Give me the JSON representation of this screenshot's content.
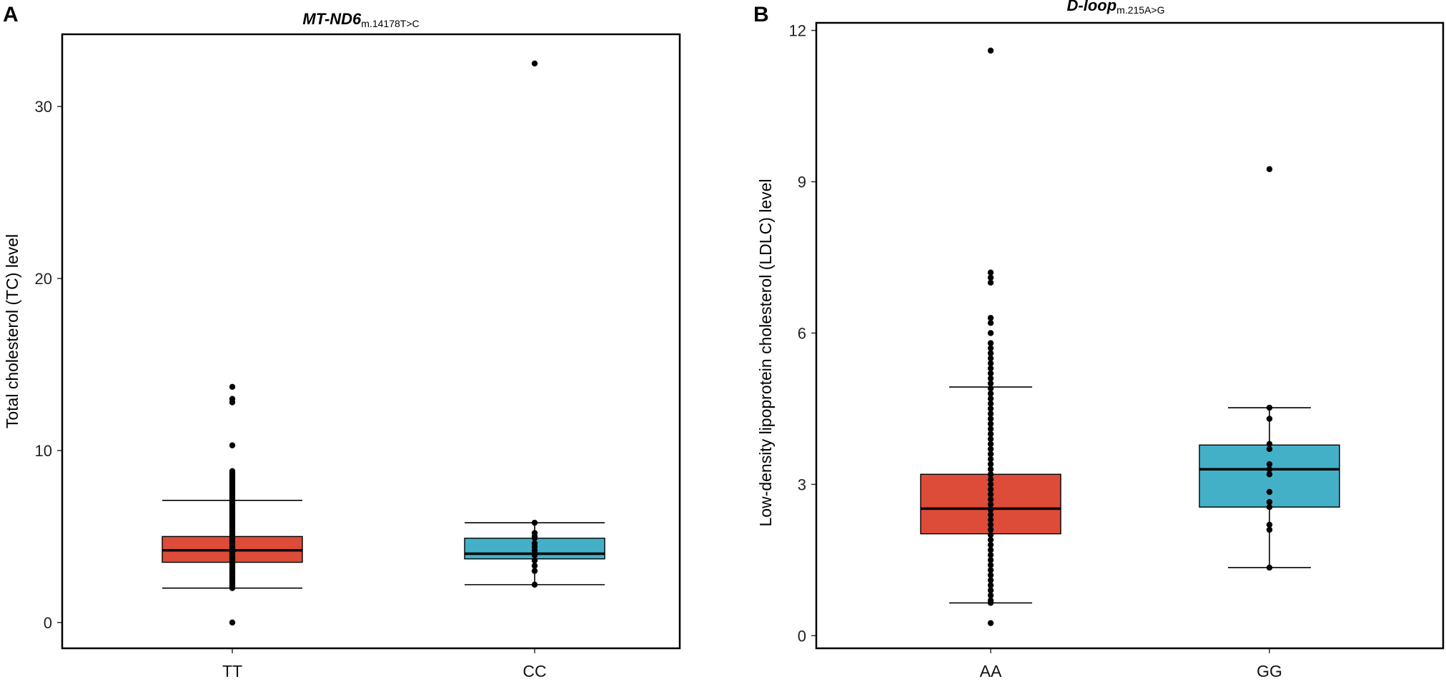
{
  "chart_data": [
    {
      "type": "box",
      "panel_label": "A",
      "title": "MT-ND6",
      "title_subscript": "m.14178T>C",
      "xlabel": "",
      "ylabel": "Total cholesterol (TC) level",
      "ylim": [
        -1.5,
        34.2
      ],
      "yticks": [
        0,
        10,
        20,
        30
      ],
      "grid": false,
      "categories": [
        "TT",
        "CC"
      ],
      "series": [
        {
          "name": "TT",
          "color": "#dd4b39",
          "q1": 3.5,
          "median": 4.2,
          "q3": 5.0,
          "whisker_low": 2.0,
          "whisker_high": 7.1,
          "points": [
            0.0,
            2.0,
            2.1,
            2.2,
            2.3,
            2.4,
            2.5,
            2.6,
            2.7,
            2.8,
            2.9,
            3.0,
            3.1,
            3.2,
            3.3,
            3.4,
            3.5,
            3.6,
            3.7,
            3.8,
            3.9,
            4.0,
            4.1,
            4.2,
            4.3,
            4.4,
            4.5,
            4.6,
            4.7,
            4.8,
            4.9,
            5.0,
            5.1,
            5.2,
            5.3,
            5.4,
            5.5,
            5.6,
            5.7,
            5.8,
            5.9,
            6.0,
            6.1,
            6.2,
            6.3,
            6.4,
            6.5,
            6.6,
            6.7,
            6.8,
            6.9,
            7.0,
            7.1,
            7.2,
            7.3,
            7.4,
            7.5,
            7.6,
            7.7,
            7.8,
            7.9,
            8.0,
            8.1,
            8.2,
            8.3,
            8.4,
            8.5,
            8.6,
            8.7,
            8.8,
            10.3,
            12.8,
            13.0,
            13.7
          ]
        },
        {
          "name": "CC",
          "color": "#43b0c8",
          "q1": 3.7,
          "median": 4.0,
          "q3": 4.9,
          "whisker_low": 2.2,
          "whisker_high": 5.8,
          "points": [
            2.2,
            3.0,
            3.3,
            3.6,
            3.9,
            4.0,
            4.2,
            4.4,
            4.6,
            4.9,
            5.0,
            5.2,
            5.8,
            32.5
          ]
        }
      ]
    },
    {
      "type": "box",
      "panel_label": "B",
      "title": "D-loop",
      "title_subscript": "m.215A>G",
      "xlabel": "",
      "ylabel": "Low-density lipoprotein cholesterol (LDLC) level",
      "ylim": [
        -0.25,
        12.15
      ],
      "yticks": [
        0,
        3,
        6,
        9,
        12
      ],
      "grid": false,
      "categories": [
        "AA",
        "GG"
      ],
      "series": [
        {
          "name": "AA",
          "color": "#dd4b39",
          "q1": 2.02,
          "median": 2.52,
          "q3": 3.2,
          "whisker_low": 0.65,
          "whisker_high": 4.93,
          "points": [
            0.25,
            0.65,
            0.7,
            0.8,
            0.9,
            1.0,
            1.1,
            1.2,
            1.3,
            1.4,
            1.5,
            1.6,
            1.7,
            1.8,
            1.9,
            2.0,
            2.1,
            2.2,
            2.3,
            2.4,
            2.5,
            2.6,
            2.7,
            2.8,
            2.9,
            3.0,
            3.1,
            3.2,
            3.3,
            3.4,
            3.5,
            3.6,
            3.7,
            3.8,
            3.9,
            4.0,
            4.1,
            4.2,
            4.3,
            4.4,
            4.5,
            4.6,
            4.7,
            4.8,
            4.9,
            5.0,
            5.1,
            5.2,
            5.3,
            5.4,
            5.5,
            5.6,
            5.7,
            5.8,
            6.0,
            6.2,
            6.3,
            7.0,
            7.1,
            7.2,
            11.6
          ]
        },
        {
          "name": "GG",
          "color": "#43b0c8",
          "q1": 2.55,
          "median": 3.3,
          "q3": 3.78,
          "whisker_low": 1.35,
          "whisker_high": 4.52,
          "points": [
            1.35,
            2.1,
            2.2,
            2.55,
            2.65,
            2.85,
            3.2,
            3.3,
            3.4,
            3.7,
            3.8,
            4.3,
            4.52,
            9.25
          ]
        }
      ]
    }
  ]
}
